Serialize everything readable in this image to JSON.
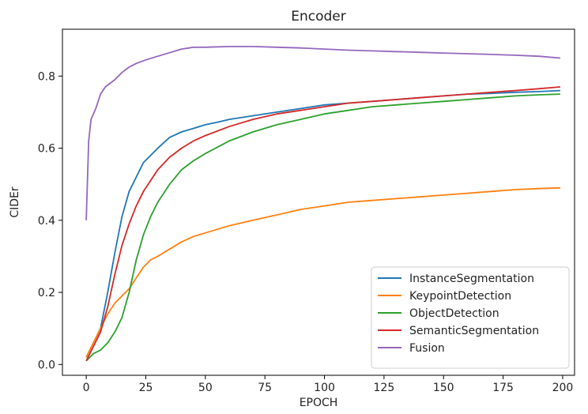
{
  "chart_data": {
    "type": "line",
    "title": "Encoder",
    "xlabel": "EPOCH",
    "ylabel": "CIDEr",
    "xlim": [
      -10,
      205
    ],
    "ylim": [
      -0.03,
      0.93
    ],
    "xticks": [
      0,
      25,
      50,
      75,
      100,
      125,
      150,
      175,
      200
    ],
    "yticks": [
      0.0,
      0.2,
      0.4,
      0.6,
      0.8
    ],
    "xtick_labels": [
      "0",
      "25",
      "50",
      "75",
      "100",
      "125",
      "150",
      "175",
      "200"
    ],
    "ytick_labels": [
      "0.0",
      "0.2",
      "0.4",
      "0.6",
      "0.8"
    ],
    "grid": false,
    "legend_position": "lower-right",
    "series": [
      {
        "name": "InstanceSegmentation",
        "color": "#1f77b4",
        "x": [
          0,
          3,
          6,
          9,
          12,
          15,
          18,
          21,
          24,
          27,
          30,
          35,
          40,
          45,
          50,
          55,
          60,
          70,
          80,
          90,
          100,
          110,
          120,
          130,
          140,
          150,
          160,
          170,
          180,
          190,
          199
        ],
        "y": [
          0.02,
          0.06,
          0.1,
          0.2,
          0.31,
          0.41,
          0.48,
          0.52,
          0.56,
          0.58,
          0.6,
          0.63,
          0.645,
          0.655,
          0.665,
          0.672,
          0.68,
          0.69,
          0.7,
          0.71,
          0.72,
          0.725,
          0.73,
          0.735,
          0.74,
          0.745,
          0.75,
          0.752,
          0.755,
          0.757,
          0.76
        ]
      },
      {
        "name": "KeypointDetection",
        "color": "#ff7f0e",
        "x": [
          0,
          3,
          6,
          9,
          12,
          15,
          18,
          21,
          24,
          27,
          30,
          35,
          40,
          45,
          50,
          60,
          70,
          80,
          90,
          100,
          110,
          120,
          130,
          140,
          150,
          160,
          170,
          180,
          190,
          199
        ],
        "y": [
          0.02,
          0.06,
          0.1,
          0.14,
          0.17,
          0.19,
          0.21,
          0.24,
          0.27,
          0.29,
          0.3,
          0.32,
          0.34,
          0.355,
          0.365,
          0.385,
          0.4,
          0.415,
          0.43,
          0.44,
          0.45,
          0.455,
          0.46,
          0.465,
          0.47,
          0.475,
          0.48,
          0.485,
          0.488,
          0.49
        ]
      },
      {
        "name": "ObjectDetection",
        "color": "#2ca02c",
        "x": [
          0,
          3,
          6,
          9,
          12,
          15,
          18,
          21,
          24,
          27,
          30,
          35,
          40,
          45,
          50,
          60,
          70,
          80,
          90,
          100,
          110,
          120,
          130,
          140,
          150,
          160,
          170,
          180,
          190,
          199
        ],
        "y": [
          0.01,
          0.03,
          0.04,
          0.06,
          0.09,
          0.13,
          0.2,
          0.29,
          0.36,
          0.41,
          0.45,
          0.5,
          0.54,
          0.565,
          0.585,
          0.62,
          0.645,
          0.665,
          0.68,
          0.695,
          0.705,
          0.715,
          0.72,
          0.725,
          0.73,
          0.735,
          0.74,
          0.745,
          0.748,
          0.75
        ]
      },
      {
        "name": "SemanticSegmentation",
        "color": "#d62728",
        "x": [
          0,
          3,
          6,
          9,
          12,
          15,
          18,
          21,
          24,
          27,
          30,
          35,
          40,
          45,
          50,
          60,
          70,
          80,
          90,
          100,
          110,
          120,
          130,
          140,
          150,
          160,
          170,
          180,
          190,
          199
        ],
        "y": [
          0.01,
          0.05,
          0.09,
          0.16,
          0.25,
          0.33,
          0.39,
          0.44,
          0.48,
          0.51,
          0.54,
          0.575,
          0.6,
          0.62,
          0.635,
          0.66,
          0.68,
          0.695,
          0.705,
          0.715,
          0.725,
          0.73,
          0.735,
          0.74,
          0.745,
          0.75,
          0.755,
          0.76,
          0.765,
          0.77
        ]
      },
      {
        "name": "Fusion",
        "color": "#9467bd",
        "x": [
          0,
          1,
          2,
          4,
          6,
          8,
          10,
          12,
          15,
          18,
          21,
          25,
          30,
          35,
          40,
          45,
          50,
          60,
          70,
          80,
          90,
          100,
          110,
          120,
          130,
          140,
          150,
          160,
          170,
          180,
          190,
          199
        ],
        "y": [
          0.4,
          0.62,
          0.68,
          0.71,
          0.75,
          0.77,
          0.78,
          0.79,
          0.81,
          0.825,
          0.835,
          0.845,
          0.855,
          0.865,
          0.875,
          0.88,
          0.88,
          0.882,
          0.882,
          0.88,
          0.878,
          0.875,
          0.872,
          0.87,
          0.868,
          0.866,
          0.864,
          0.862,
          0.86,
          0.858,
          0.855,
          0.85
        ]
      }
    ]
  }
}
